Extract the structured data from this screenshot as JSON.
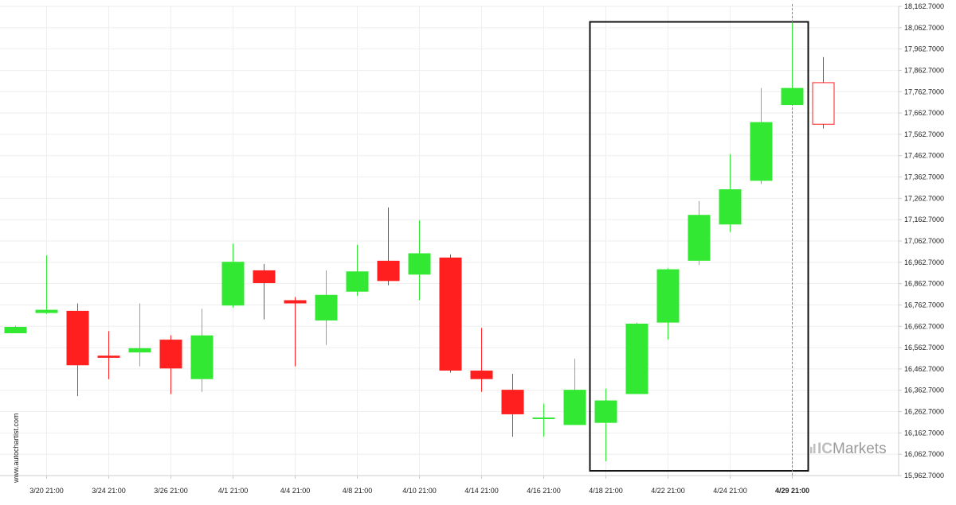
{
  "watermark": "www.autochartist.com",
  "brand": {
    "prefix": "IC",
    "name": "Markets"
  },
  "colors": {
    "up": "#33e833",
    "down": "#ff1f1f",
    "grid": "#eeeeee",
    "axis": "#cccccc",
    "box": "#111111",
    "vline": "#888888"
  },
  "chart_data": {
    "type": "candlestick",
    "ylim": [
      15962.7,
      18162.7
    ],
    "ytick_labels": [
      "15,962.7000",
      "16,062.7000",
      "16,162.7000",
      "16,262.7000",
      "16,362.7000",
      "16,462.7000",
      "16,562.7000",
      "16,662.7000",
      "16,762.7000",
      "16,862.7000",
      "16,962.7000",
      "17,062.7000",
      "17,162.7000",
      "17,262.7000",
      "17,362.7000",
      "17,462.7000",
      "17,562.7000",
      "17,662.7000",
      "17,762.7000",
      "17,862.7000",
      "17,962.7000",
      "18,062.7000",
      "18,162.7000"
    ],
    "ytick_values": [
      15962.7,
      16062.7,
      16162.7,
      16262.7,
      16362.7,
      16462.7,
      16562.7,
      16662.7,
      16762.7,
      16862.7,
      16962.7,
      17062.7,
      17162.7,
      17262.7,
      17362.7,
      17462.7,
      17562.7,
      17662.7,
      17762.7,
      17862.7,
      17962.7,
      18062.7,
      18162.7
    ],
    "xtick_labels": [
      {
        "label": "3/20 21:00",
        "index": 1
      },
      {
        "label": "3/24 21:00",
        "index": 3
      },
      {
        "label": "3/26 21:00",
        "index": 5
      },
      {
        "label": "4/1 21:00",
        "index": 7
      },
      {
        "label": "4/4 21:00",
        "index": 9
      },
      {
        "label": "4/8 21:00",
        "index": 11
      },
      {
        "label": "4/10 21:00",
        "index": 13
      },
      {
        "label": "4/14 21:00",
        "index": 15
      },
      {
        "label": "4/16 21:00",
        "index": 17
      },
      {
        "label": "4/18 21:00",
        "index": 19
      },
      {
        "label": "4/22 21:00",
        "index": 21
      },
      {
        "label": "4/24 21:00",
        "index": 23
      },
      {
        "label": "4/29 21:00",
        "index": 25,
        "current": true
      }
    ],
    "candles": [
      {
        "o": 16630,
        "h": 16665,
        "l": 16630,
        "c": 16660
      },
      {
        "o": 16725,
        "h": 16995,
        "l": 16720,
        "c": 16740
      },
      {
        "o": 16735,
        "h": 16770,
        "l": 16335,
        "c": 16480
      },
      {
        "o": 16525,
        "h": 16640,
        "l": 16415,
        "c": 16515
      },
      {
        "o": 16540,
        "h": 16770,
        "l": 16475,
        "c": 16560
      },
      {
        "o": 16600,
        "h": 16620,
        "l": 16345,
        "c": 16465
      },
      {
        "o": 16415,
        "h": 16745,
        "l": 16355,
        "c": 16620
      },
      {
        "o": 16760,
        "h": 17050,
        "l": 16750,
        "c": 16965
      },
      {
        "o": 16925,
        "h": 16955,
        "l": 16695,
        "c": 16865
      },
      {
        "o": 16785,
        "h": 16800,
        "l": 16475,
        "c": 16770
      },
      {
        "o": 16690,
        "h": 16925,
        "l": 16575,
        "c": 16810
      },
      {
        "o": 16825,
        "h": 17045,
        "l": 16805,
        "c": 16920
      },
      {
        "o": 16970,
        "h": 17220,
        "l": 16855,
        "c": 16875
      },
      {
        "o": 16905,
        "h": 17160,
        "l": 16785,
        "c": 17005
      },
      {
        "o": 16985,
        "h": 17000,
        "l": 16445,
        "c": 16455
      },
      {
        "o": 16455,
        "h": 16655,
        "l": 16355,
        "c": 16415
      },
      {
        "o": 16365,
        "h": 16440,
        "l": 16145,
        "c": 16250
      },
      {
        "o": 16230,
        "h": 16300,
        "l": 16145,
        "c": 16235
      },
      {
        "o": 16200,
        "h": 16510,
        "l": 16200,
        "c": 16365
      },
      {
        "o": 16210,
        "h": 16370,
        "l": 16030,
        "c": 16315
      },
      {
        "o": 16345,
        "h": 16680,
        "l": 16345,
        "c": 16675
      },
      {
        "o": 16680,
        "h": 16935,
        "l": 16600,
        "c": 16930
      },
      {
        "o": 16970,
        "h": 17250,
        "l": 16950,
        "c": 17185
      },
      {
        "o": 17140,
        "h": 17470,
        "l": 17105,
        "c": 17305
      },
      {
        "o": 17345,
        "h": 17780,
        "l": 17330,
        "c": 17620
      },
      {
        "o": 17700,
        "h": 18085,
        "l": 17700,
        "c": 17780
      },
      {
        "o": 17805,
        "h": 17925,
        "l": 17590,
        "c": 17610,
        "style": "outline"
      }
    ],
    "highlight_box": {
      "from_index": 19,
      "to_index": 25,
      "y_low": 15985,
      "y_high": 18090
    },
    "current_index": 25
  }
}
